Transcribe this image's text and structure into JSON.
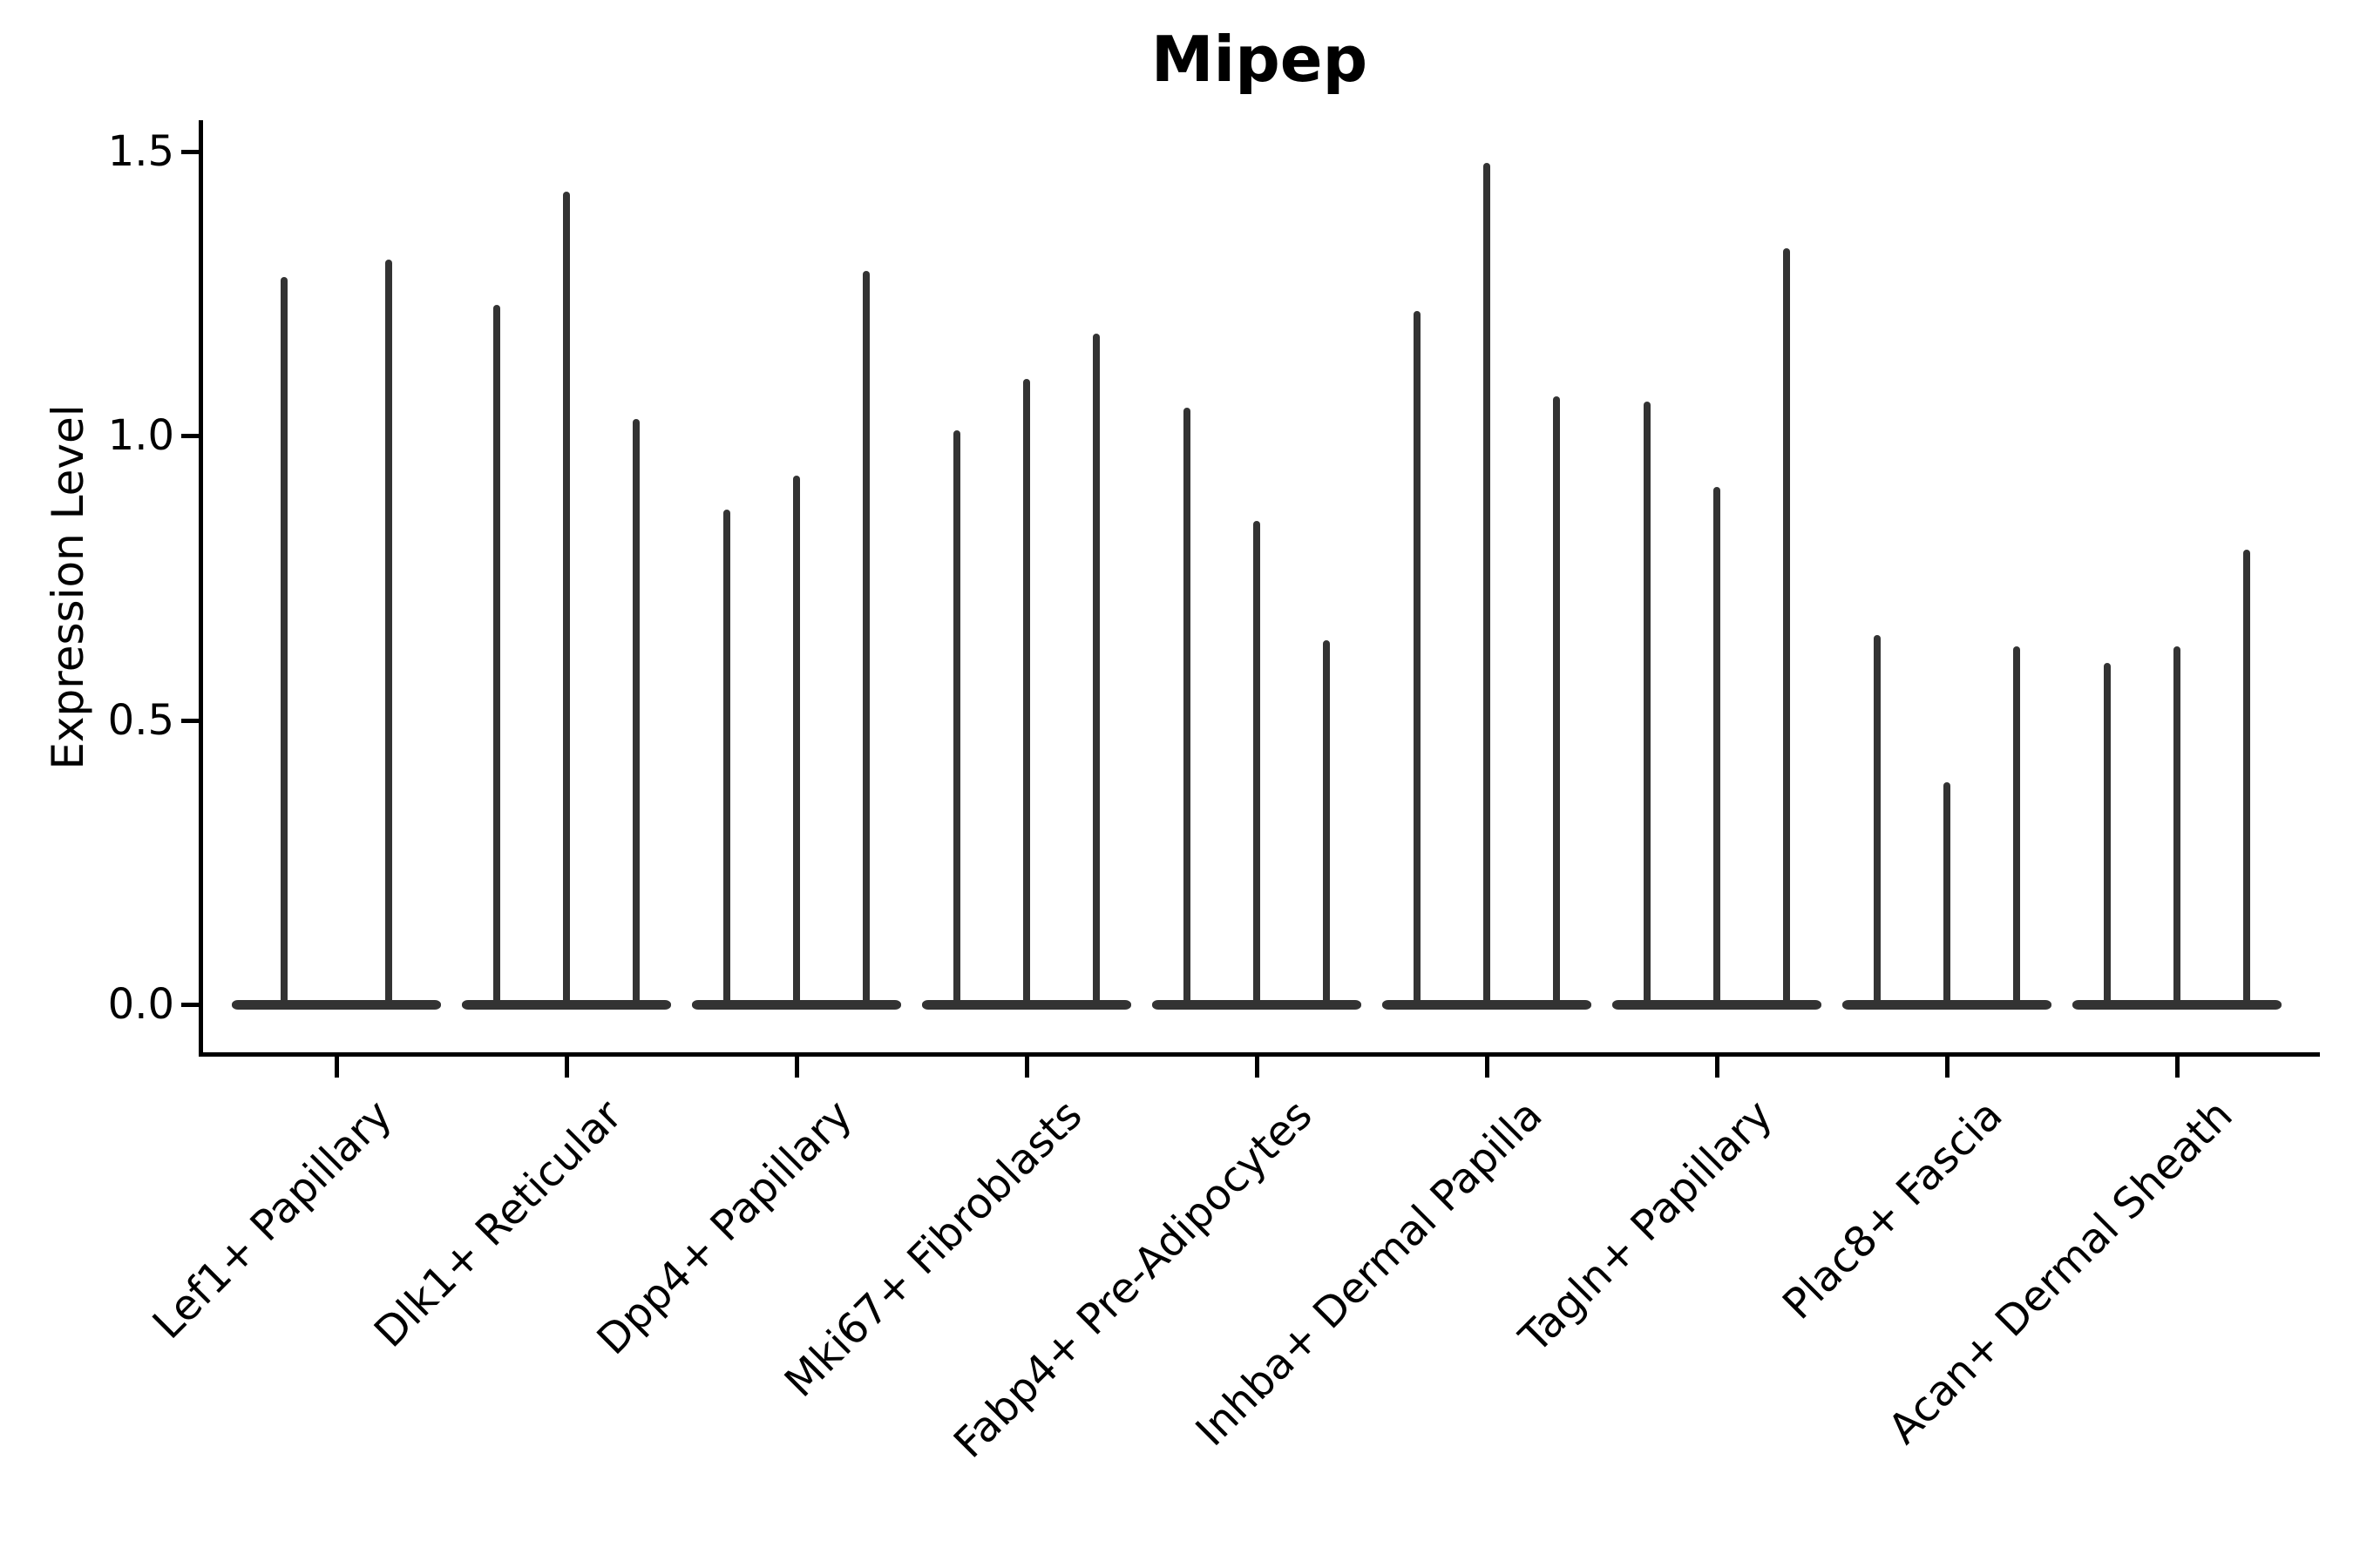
{
  "chart_data": {
    "type": "violin",
    "title": "Mipep",
    "ylabel": "Expression Level",
    "xlabel": "",
    "legend": "none",
    "grid": false,
    "background_color": "#ffffff",
    "violin_color": "#333333",
    "axis_color": "#000000",
    "categories": [
      "Lef1+ Papillary",
      "Dlk1+ Reticular",
      "Dpp4+ Papillary",
      "Mki67+ Fibroblasts",
      "Fabp4+ Pre-Adipocytes",
      "Inhba+ Dermal Papilla",
      "Tagln+ Papillary",
      "Plac8+ Fascia",
      "Acan+ Dermal Sheath"
    ],
    "violins_per_category": [
      2,
      3,
      3,
      3,
      3,
      3,
      3,
      3,
      3
    ],
    "violin_min_expression": 0.0,
    "violins_max_expression": [
      [
        1.28,
        1.31
      ],
      [
        1.23,
        1.43,
        1.03
      ],
      [
        0.87,
        0.93,
        1.29
      ],
      [
        1.01,
        1.1,
        1.18
      ],
      [
        1.05,
        0.85,
        0.64
      ],
      [
        1.22,
        1.48,
        1.07
      ],
      [
        1.06,
        0.91,
        1.33
      ],
      [
        0.65,
        0.39,
        0.63
      ],
      [
        0.6,
        0.63,
        0.8
      ]
    ],
    "y_tick_labels": [
      "0.0",
      "0.5",
      "1.0",
      "1.5"
    ],
    "y_tick_values": [
      0.0,
      0.5,
      1.0,
      1.5
    ],
    "ylim": [
      -0.09,
      1.56
    ],
    "x_tick_rotation_deg": 45
  }
}
